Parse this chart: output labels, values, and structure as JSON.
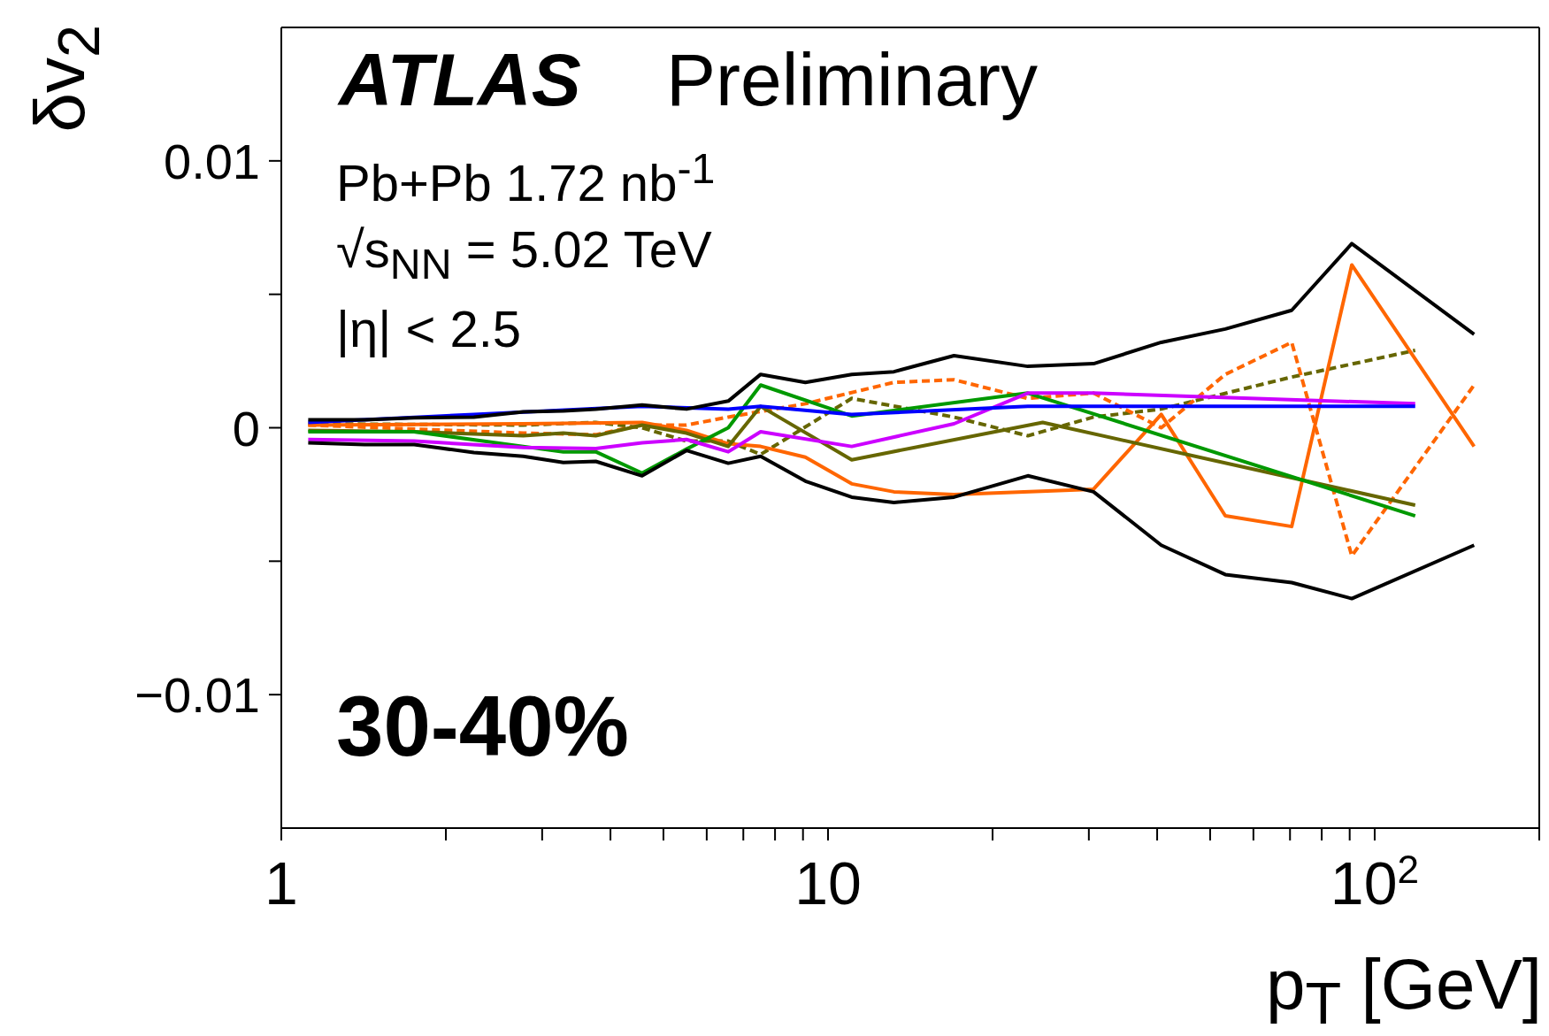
{
  "chart_data": {
    "type": "line",
    "xlabel": "p$_{T}$ [GeV]",
    "ylabel": "δv$_{2}$",
    "log": "x",
    "xlim": [
      1,
      200
    ],
    "xticks": [
      1,
      {
        "value": 2,
        "label": null
      },
      {
        "value": 3,
        "label": null
      },
      {
        "value": 4,
        "label": null
      },
      {
        "value": 5,
        "label": null
      },
      {
        "value": 6,
        "label": null
      },
      {
        "value": 7,
        "label": null
      },
      {
        "value": 8,
        "label": null
      },
      {
        "value": 9,
        "label": null
      },
      10,
      {
        "value": 20,
        "label": null
      },
      {
        "value": 30,
        "label": null
      },
      {
        "value": 40,
        "label": null
      },
      {
        "value": 50,
        "label": null
      },
      {
        "value": 60,
        "label": null
      },
      {
        "value": 70,
        "label": null
      },
      {
        "value": 80,
        "label": null
      },
      {
        "value": 90,
        "label": null
      },
      {
        "value": 100,
        "label": "10$^{2}$"
      },
      {
        "value": 200,
        "label": null
      }
    ],
    "ylim": [
      -0.015,
      0.015
    ],
    "yticks": [
      {
        "value": -0.01,
        "label": "−0.01"
      },
      {
        "value": -0.005,
        "label": null
      },
      0,
      {
        "value": 0.005,
        "label": null
      },
      0.01
    ],
    "annotations": [
      "ATLAS",
      "Preliminary",
      "Pb+Pb 1.72 nb$^{-1}$",
      "√s$_{NN}$ = 5.02 TeV",
      "|η| < 2.5",
      "30-40%"
    ],
    "series": [
      {
        "color": "#000000",
        "x": [
          1.12,
          1.42,
          1.75,
          2.25,
          2.77,
          3.28,
          3.76,
          4.57,
          5.51,
          6.57,
          7.53,
          9.09,
          11.05,
          13.2,
          17,
          23.2,
          30.6,
          40.7,
          53.3,
          70.5,
          90.8,
          152
        ],
        "values": [
          0.0003,
          0.0003,
          0.00037,
          0.0004,
          0.0006,
          0.00063,
          0.0007,
          0.00085,
          0.0007,
          0.001,
          0.002,
          0.0017,
          0.002,
          0.0021,
          0.0027,
          0.0023,
          0.0024,
          0.0032,
          0.0037,
          0.0044,
          0.0069,
          0.0035
        ]
      },
      {
        "color": "#000000",
        "x": [
          1.12,
          1.42,
          1.75,
          2.25,
          2.77,
          3.28,
          3.76,
          4.57,
          5.51,
          6.57,
          7.53,
          9.09,
          11.05,
          13.2,
          17,
          23.2,
          30.6,
          40.7,
          53.3,
          70.5,
          90.8,
          152
        ],
        "values": [
          -0.00056,
          -0.00063,
          -0.00063,
          -0.00093,
          -0.00107,
          -0.0013,
          -0.00126,
          -0.0018,
          -0.00085,
          -0.00133,
          -0.00107,
          -0.002,
          -0.0026,
          -0.0028,
          -0.0026,
          -0.0018,
          -0.0024,
          -0.0044,
          -0.0055,
          -0.0058,
          -0.0064,
          -0.0044
        ]
      },
      {
        "color": "#0000ff",
        "x": [
          1.12,
          2.25,
          4.57,
          6.57,
          7.53,
          11.05,
          23.2,
          30.6,
          118.6
        ],
        "values": [
          0.0002,
          0.0005,
          0.0008,
          0.0007,
          0.0008,
          0.0005,
          0.0008,
          0.0008,
          0.0008
        ]
      },
      {
        "color": "#cc00ff",
        "x": [
          1.12,
          1.75,
          2.77,
          3.76,
          4.57,
          5.51,
          6.57,
          7.53,
          11.05,
          17,
          23.2,
          30.6,
          118.6
        ],
        "values": [
          -0.00044,
          -0.0005,
          -0.00074,
          -0.00078,
          -0.00056,
          -0.00044,
          -0.0009,
          -0.00015,
          -0.0007,
          0.00015,
          0.0013,
          0.0013,
          0.0009
        ]
      },
      {
        "color": "#009900",
        "x": [
          1.12,
          1.75,
          2.77,
          3.28,
          3.76,
          4.57,
          5.51,
          6.57,
          7.53,
          11.05,
          23.2,
          118.6
        ],
        "values": [
          -0.00015,
          -0.00015,
          -0.0007,
          -0.0009,
          -0.0009,
          -0.0017,
          -0.0008,
          0,
          0.0016,
          0.00044,
          0.0013,
          -0.0033
        ]
      },
      {
        "color": "#666600",
        "x": [
          1.12,
          1.75,
          2.77,
          3.28,
          3.76,
          4.57,
          5.51,
          6.57,
          7.53,
          11.05,
          24.7,
          118.6
        ],
        "values": [
          -0.0001,
          -0.00015,
          -0.0003,
          -0.0002,
          -0.0003,
          0.0001,
          -0.0002,
          -0.0007,
          0.0008,
          -0.0012,
          0.0002,
          -0.0029
        ]
      },
      {
        "color": "#ff6600",
        "x": [
          1.12,
          2.77,
          4.57,
          5.51,
          6.57,
          7.53,
          9.09,
          11.05,
          13.2,
          17,
          30.6,
          40.7,
          53.3,
          70.5,
          90.8,
          152
        ],
        "values": [
          0.0001,
          0.00015,
          0.0002,
          -0.0001,
          -0.0006,
          -0.0007,
          -0.0011,
          -0.0021,
          -0.0024,
          -0.0025,
          -0.0023,
          0.0005,
          -0.0033,
          -0.0037,
          0.0061,
          -0.0007
        ]
      },
      {
        "color": "#ff6600",
        "line_style": "dashed",
        "x": [
          1.12,
          2.77,
          3.76,
          4.57,
          5.51,
          6.57,
          9.09,
          13.2,
          17,
          23.2,
          30.6,
          40.7,
          53.3,
          70.5,
          90.8,
          152
        ],
        "values": [
          0.0001,
          -0.0002,
          -0.00026,
          0.0001,
          0.0001,
          0.0004,
          0.0009,
          0.0017,
          0.0018,
          0.0011,
          0.0013,
          0,
          0.002,
          0.0032,
          -0.0048,
          0.0016
        ]
      },
      {
        "color": "#666600",
        "line_style": "dashed",
        "x": [
          1.12,
          2.77,
          3.76,
          4.57,
          5.51,
          6.57,
          7.53,
          11.05,
          17,
          23.2,
          30.6,
          40.7,
          70.5,
          118.6
        ],
        "values": [
          0.00015,
          0.0001,
          0.0002,
          0,
          -0.0005,
          -0.0005,
          -0.001,
          0.0011,
          0.0004,
          -0.0003,
          0.0004,
          0.0007,
          0.0019,
          0.0029
        ]
      }
    ]
  }
}
